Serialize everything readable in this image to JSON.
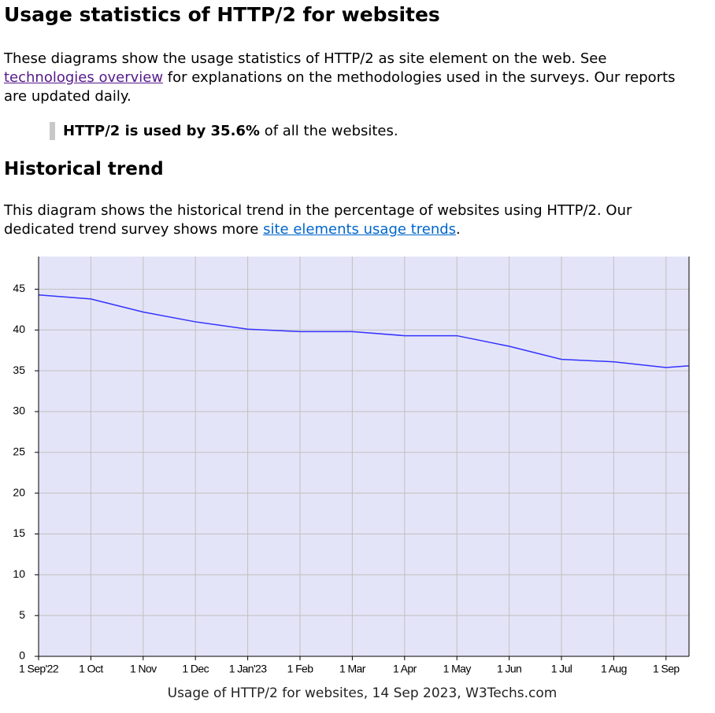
{
  "header": {
    "title": "Usage statistics of HTTP/2 for websites"
  },
  "intro": {
    "before_link": "These diagrams show the usage statistics of HTTP/2 as site element on the web. See ",
    "link": "technologies overview",
    "after_link": " for explanations on the methodologies used in the surveys. Our reports are updated daily."
  },
  "highlight": {
    "bold": "HTTP/2 is used by 35.6%",
    "rest": " of all the websites."
  },
  "section": {
    "title": "Historical trend",
    "before_link": "This diagram shows the historical trend in the percentage of websites using HTTP/2. Our dedicated trend survey shows more ",
    "link": "site elements usage trends",
    "after_link": "."
  },
  "chart_data": {
    "type": "line",
    "caption": "Usage of HTTP/2 for websites, 14 Sep 2023, W3Techs.com",
    "categories": [
      "1 Sep'22",
      "1 Oct",
      "1 Nov",
      "1 Dec",
      "1 Jan'23",
      "1 Feb",
      "1 Mar",
      "1 Apr",
      "1 May",
      "1 Jun",
      "1 Jul",
      "1 Aug",
      "1 Sep",
      null
    ],
    "values": [
      44.3,
      43.8,
      42.2,
      41.0,
      40.1,
      39.8,
      39.8,
      39.3,
      39.3,
      38.0,
      36.4,
      36.1,
      35.4,
      35.6
    ],
    "color": "#3333ff",
    "background": "#e4e4f8",
    "grid": true,
    "ylim": [
      0,
      49
    ],
    "yticks": [
      0,
      5,
      10,
      15,
      20,
      25,
      30,
      35,
      40,
      45
    ]
  }
}
